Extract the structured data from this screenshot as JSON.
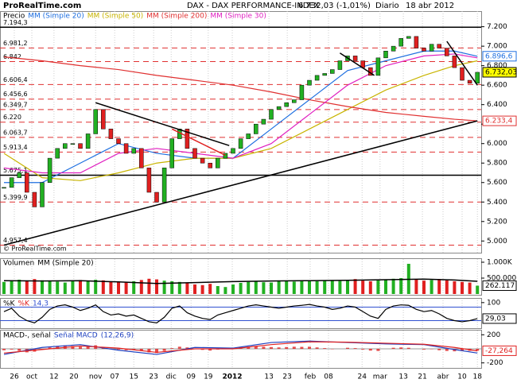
{
  "chart_data": [
    {
      "type": "candlestick",
      "watermark": "ProRealTime.com",
      "copyright": "© ProRealTime.com",
      "title": "DAX - DAX PERFORMANCE-INDEX",
      "subtitle": "6.732,03 (-1,01%)",
      "period": "Diario",
      "date": "18 abr 2012",
      "label": "Precio",
      "xlim": [
        0,
        125
      ],
      "xticks": [
        {
          "value": 2.7,
          "label": "26"
        },
        {
          "value": 7.3,
          "label": "oct"
        },
        {
          "value": 13.1,
          "label": "12"
        },
        {
          "value": 18.3,
          "label": "20"
        },
        {
          "value": 24,
          "label": "nov"
        },
        {
          "value": 29,
          "label": "07"
        },
        {
          "value": 34,
          "label": "15"
        },
        {
          "value": 39.2,
          "label": "23"
        },
        {
          "value": 43.8,
          "label": "dic"
        },
        {
          "value": 49,
          "label": "09"
        },
        {
          "value": 53.5,
          "label": "19"
        },
        {
          "value": 59.8,
          "label": "2012"
        },
        {
          "value": 69.4,
          "label": "13"
        },
        {
          "value": 74.2,
          "label": "23"
        },
        {
          "value": 80.2,
          "label": "feb"
        },
        {
          "value": 85,
          "label": "08"
        },
        {
          "value": 93.8,
          "label": "24"
        },
        {
          "value": 98.5,
          "label": "mar"
        },
        {
          "value": 104.6,
          "label": "13"
        },
        {
          "value": 109.6,
          "label": "21"
        },
        {
          "value": 115,
          "label": "abr"
        },
        {
          "value": 120,
          "label": "10"
        },
        {
          "value": 124,
          "label": "18"
        }
      ],
      "ylim": [
        4880,
        7360
      ],
      "yticks": [
        {
          "value": 7200,
          "label": "7.200"
        },
        {
          "value": 7000,
          "label": "7.000"
        },
        {
          "value": 6800,
          "label": "6.800"
        },
        {
          "value": 6600,
          "label": "6.600"
        },
        {
          "value": 6400,
          "label": "6.400"
        },
        {
          "value": 6200,
          "label": "6.200"
        },
        {
          "value": 6000,
          "label": "6.000"
        },
        {
          "value": 5800,
          "label": "5.800"
        },
        {
          "value": 5600,
          "label": "5.600"
        },
        {
          "value": 5400,
          "label": "5.400"
        },
        {
          "value": 5200,
          "label": "5.200"
        },
        {
          "value": 5000,
          "label": "5.000"
        }
      ],
      "x": [
        0,
        2,
        4,
        6,
        8,
        10,
        12,
        14,
        16,
        18,
        20,
        22,
        24,
        26,
        28,
        30,
        32,
        34,
        36,
        38,
        40,
        42,
        44,
        46,
        48,
        50,
        52,
        54,
        56,
        58,
        60,
        62,
        64,
        66,
        68,
        70,
        72,
        74,
        76,
        78,
        80,
        82,
        84,
        86,
        88,
        90,
        92,
        94,
        96,
        98,
        100,
        102,
        104,
        106,
        108,
        110,
        112,
        114,
        116,
        118,
        120,
        122,
        124
      ],
      "values": [
        5550,
        5650,
        5700,
        5500,
        5350,
        5600,
        5850,
        5950,
        6000,
        6000,
        5950,
        6100,
        6350,
        6150,
        6050,
        6000,
        5900,
        5950,
        5750,
        5500,
        5400,
        5750,
        6050,
        6150,
        5950,
        5850,
        5800,
        5750,
        5850,
        5900,
        5950,
        6050,
        6100,
        6200,
        6250,
        6350,
        6380,
        6420,
        6450,
        6600,
        6650,
        6700,
        6720,
        6760,
        6850,
        6900,
        6850,
        6780,
        6700,
        6880,
        6950,
        7000,
        7080,
        7100,
        6980,
        6950,
        7020,
        6980,
        6900,
        6780,
        6650,
        6620,
        6732.03
      ],
      "last_value_label": "6.732,03",
      "up_color": "#22b022",
      "down_color": "#e02020",
      "levels": [
        {
          "value": 7194.3,
          "label": "7.194,3",
          "style": "solid"
        },
        {
          "value": 6981.2,
          "label": "6.981,2",
          "style": "dashed"
        },
        {
          "value": 6842,
          "label": "6.842",
          "style": "dashed"
        },
        {
          "value": 6606.4,
          "label": "6.606,4",
          "style": "dashed"
        },
        {
          "value": 6456.6,
          "label": "6.456,6",
          "style": "dashed"
        },
        {
          "value": 6349.7,
          "label": "6.349,7",
          "style": "dashed"
        },
        {
          "value": 6220,
          "label": "6.220",
          "style": "dashed"
        },
        {
          "value": 6063.7,
          "label": "6.063,7",
          "style": "dashed"
        },
        {
          "value": 5913.4,
          "label": "5.913,4",
          "style": "dashed"
        },
        {
          "value": 5675.1,
          "label": "5.675,1",
          "style": "solid"
        },
        {
          "value": 5399.9,
          "label": "5.399,9",
          "style": "dashed"
        },
        {
          "value": 4957.4,
          "label": "4.957,4",
          "style": "dashed"
        }
      ],
      "trendlines": [
        {
          "x": [
            24,
            59
          ],
          "values": [
            6420,
            5980
          ],
          "color": "#000000"
        },
        {
          "x": [
            0,
            124
          ],
          "values": [
            4957.4,
            6233.4
          ],
          "color": "#000000"
        },
        {
          "x": [
            44,
            58
          ],
          "values": [
            6150,
            5880
          ],
          "color": "#e02020"
        },
        {
          "x": [
            88,
            97
          ],
          "values": [
            6930,
            6700
          ],
          "color": "#000000"
        },
        {
          "x": [
            116,
            124
          ],
          "values": [
            7050,
            6600
          ],
          "color": "#000000"
        }
      ],
      "series": [
        {
          "name": "MM (Simple 20)",
          "color": "#1e6fe0",
          "x": [
            0,
            10,
            20,
            30,
            40,
            50,
            60,
            70,
            80,
            90,
            100,
            110,
            118,
            124
          ],
          "values": [
            5600,
            5600,
            5800,
            6000,
            5900,
            5850,
            5850,
            6150,
            6450,
            6750,
            6850,
            6950,
            6950,
            6896.6
          ],
          "value_label": "6.896,6"
        },
        {
          "name": "MM (Simple 50)",
          "color": "#c8b400",
          "x": [
            0,
            10,
            20,
            30,
            40,
            50,
            60,
            70,
            80,
            90,
            100,
            110,
            118,
            124
          ],
          "values": [
            5900,
            5650,
            5620,
            5700,
            5800,
            5850,
            5850,
            5950,
            6150,
            6350,
            6550,
            6700,
            6800,
            6850
          ]
        },
        {
          "name": "MM (Simple 200)",
          "color": "#e03030",
          "x": [
            0,
            10,
            20,
            30,
            40,
            50,
            60,
            70,
            80,
            90,
            100,
            110,
            118,
            124
          ],
          "values": [
            6890,
            6850,
            6800,
            6760,
            6700,
            6650,
            6600,
            6530,
            6450,
            6380,
            6320,
            6280,
            6250,
            6233.4
          ],
          "value_label": "6.233,4"
        },
        {
          "name": "MM (Simple 30)",
          "color": "#e020c0",
          "x": [
            0,
            10,
            20,
            30,
            40,
            50,
            60,
            70,
            80,
            90,
            100,
            110,
            118,
            124
          ],
          "values": [
            5750,
            5700,
            5700,
            5900,
            5950,
            5900,
            5850,
            6000,
            6300,
            6600,
            6800,
            6900,
            6920,
            6880
          ]
        }
      ]
    },
    {
      "type": "bar",
      "label": "Volumen",
      "ylim": [
        0,
        1100000
      ],
      "yticks": [
        {
          "value": 1000000,
          "label": "1.000K"
        },
        {
          "value": 500000,
          "label": "500.000"
        }
      ],
      "values": [
        380000,
        420000,
        450000,
        400000,
        470000,
        430000,
        410000,
        390000,
        360000,
        420000,
        440000,
        400000,
        450000,
        430000,
        390000,
        380000,
        360000,
        400000,
        440000,
        480000,
        460000,
        420000,
        400000,
        380000,
        350000,
        300000,
        280000,
        320000,
        250000,
        220000,
        300000,
        350000,
        380000,
        400000,
        370000,
        360000,
        400000,
        420000,
        390000,
        410000,
        430000,
        400000,
        420000,
        440000,
        410000,
        450000,
        470000,
        420000,
        400000,
        430000,
        460000,
        480000,
        500000,
        950000,
        450000,
        420000,
        440000,
        470000,
        430000,
        400000,
        380000,
        360000,
        262117
      ],
      "last_value_label": "262.117",
      "series": [
        {
          "name": "MM (Simple 20)",
          "color": "#000000",
          "x": [
            0,
            10,
            20,
            30,
            40,
            50,
            60,
            70,
            80,
            90,
            100,
            110,
            118,
            124
          ],
          "values": [
            420000,
            410000,
            420000,
            380000,
            330000,
            360000,
            390000,
            410000,
            420000,
            430000,
            450000,
            470000,
            440000,
            400000
          ]
        }
      ]
    },
    {
      "type": "line",
      "label": "%K",
      "name": "%K",
      "params": "14,3",
      "color": "#000000",
      "ylim": [
        -10,
        110
      ],
      "yticks": [
        100
      ],
      "levels": [
        80,
        20
      ],
      "values": [
        60,
        75,
        40,
        20,
        10,
        35,
        70,
        85,
        90,
        80,
        65,
        75,
        90,
        60,
        45,
        50,
        40,
        45,
        30,
        15,
        10,
        35,
        75,
        85,
        55,
        40,
        30,
        25,
        45,
        55,
        65,
        75,
        85,
        90,
        85,
        80,
        75,
        80,
        85,
        88,
        92,
        85,
        80,
        70,
        75,
        85,
        80,
        60,
        40,
        30,
        70,
        85,
        90,
        88,
        70,
        60,
        65,
        50,
        30,
        20,
        15,
        20,
        29.03
      ],
      "last_value_label": "29,03"
    },
    {
      "type": "histogram",
      "label": "MACD-, señal",
      "name": "Señal MACD",
      "params": "(12,26,9)",
      "color": "#e02020",
      "ylim": [
        -260,
        260
      ],
      "yticks": [
        200,
        -200
      ],
      "values": [
        -20,
        -10,
        -30,
        -50,
        -40,
        -10,
        20,
        40,
        50,
        40,
        30,
        35,
        50,
        20,
        0,
        -10,
        -20,
        -15,
        -30,
        -50,
        -60,
        -30,
        10,
        30,
        20,
        0,
        -15,
        -25,
        -10,
        0,
        10,
        20,
        30,
        35,
        30,
        25,
        20,
        25,
        30,
        28,
        30,
        20,
        10,
        -5,
        0,
        15,
        10,
        -10,
        -25,
        -30,
        0,
        15,
        20,
        15,
        0,
        -10,
        -5,
        -20,
        -30,
        -35,
        -30,
        -28,
        -27.264
      ],
      "last_value_label": "-27,264",
      "series": [
        {
          "name": "MACD",
          "color": "#1e40c0",
          "x": [
            0,
            10,
            20,
            30,
            40,
            50,
            60,
            70,
            80,
            90,
            100,
            110,
            118,
            124
          ],
          "values": [
            -80,
            20,
            60,
            -20,
            -80,
            20,
            10,
            90,
            110,
            90,
            70,
            60,
            -10,
            -60
          ]
        },
        {
          "name": "Señal",
          "color": "#e02020",
          "x": [
            0,
            10,
            20,
            30,
            40,
            50,
            60,
            70,
            80,
            90,
            100,
            110,
            118,
            124
          ],
          "values": [
            -60,
            -10,
            40,
            10,
            -50,
            0,
            0,
            60,
            100,
            95,
            80,
            65,
            20,
            -30
          ]
        }
      ]
    }
  ]
}
